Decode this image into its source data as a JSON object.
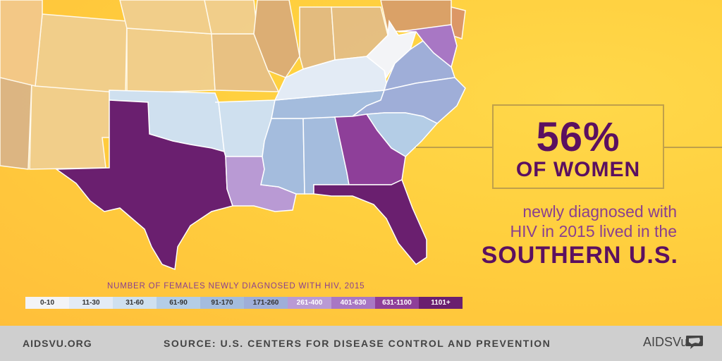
{
  "stat": {
    "percent": "56%",
    "label": "OF WOMEN"
  },
  "description": {
    "line1": "newly diagnosed with",
    "line2": "HIV in 2015 lived in the",
    "region": "SOUTHERN U.S."
  },
  "legend": {
    "title": "NUMBER OF FEMALES NEWLY DIAGNOSED WITH HIV, 2015",
    "bins": [
      {
        "label": "0-10",
        "color": "#f3f4f7",
        "text_color": "#333333"
      },
      {
        "label": "11-30",
        "color": "#e3ebf5",
        "text_color": "#333333"
      },
      {
        "label": "31-60",
        "color": "#cfe0ef",
        "text_color": "#333333"
      },
      {
        "label": "61-90",
        "color": "#b4cde6",
        "text_color": "#333333"
      },
      {
        "label": "91-170",
        "color": "#a4bcdd",
        "text_color": "#333333"
      },
      {
        "label": "171-260",
        "color": "#9faed8",
        "text_color": "#333333"
      },
      {
        "label": "261-400",
        "color": "#b99ad4",
        "text_color": "#ffffff"
      },
      {
        "label": "401-630",
        "color": "#a877c4",
        "text_color": "#ffffff"
      },
      {
        "label": "631-1100",
        "color": "#8e3f99",
        "text_color": "#ffffff"
      },
      {
        "label": "1101+",
        "color": "#6a1f6f",
        "text_color": "#ffffff"
      }
    ]
  },
  "states": [
    {
      "name": "texas",
      "bin": "1101+"
    },
    {
      "name": "florida",
      "bin": "1101+"
    },
    {
      "name": "georgia",
      "bin": "631-1100"
    },
    {
      "name": "maryland",
      "bin": "401-630"
    },
    {
      "name": "louisiana",
      "bin": "261-400"
    },
    {
      "name": "virginia",
      "bin": "171-260"
    },
    {
      "name": "north-carolina",
      "bin": "171-260"
    },
    {
      "name": "tennessee",
      "bin": "91-170"
    },
    {
      "name": "mississippi",
      "bin": "91-170"
    },
    {
      "name": "alabama",
      "bin": "91-170"
    },
    {
      "name": "south-carolina",
      "bin": "61-90"
    },
    {
      "name": "oklahoma",
      "bin": "31-60"
    },
    {
      "name": "arkansas",
      "bin": "31-60"
    },
    {
      "name": "kentucky",
      "bin": "11-30"
    },
    {
      "name": "west-virginia",
      "bin": "0-10"
    }
  ],
  "footer": {
    "site": "AIDSVU.ORG",
    "source": "SOURCE: U.S. CENTERS FOR DISEASE CONTROL AND PREVENTION",
    "logo": "AIDSVu",
    "logo_icon": "usa-chat-bubble-icon"
  }
}
